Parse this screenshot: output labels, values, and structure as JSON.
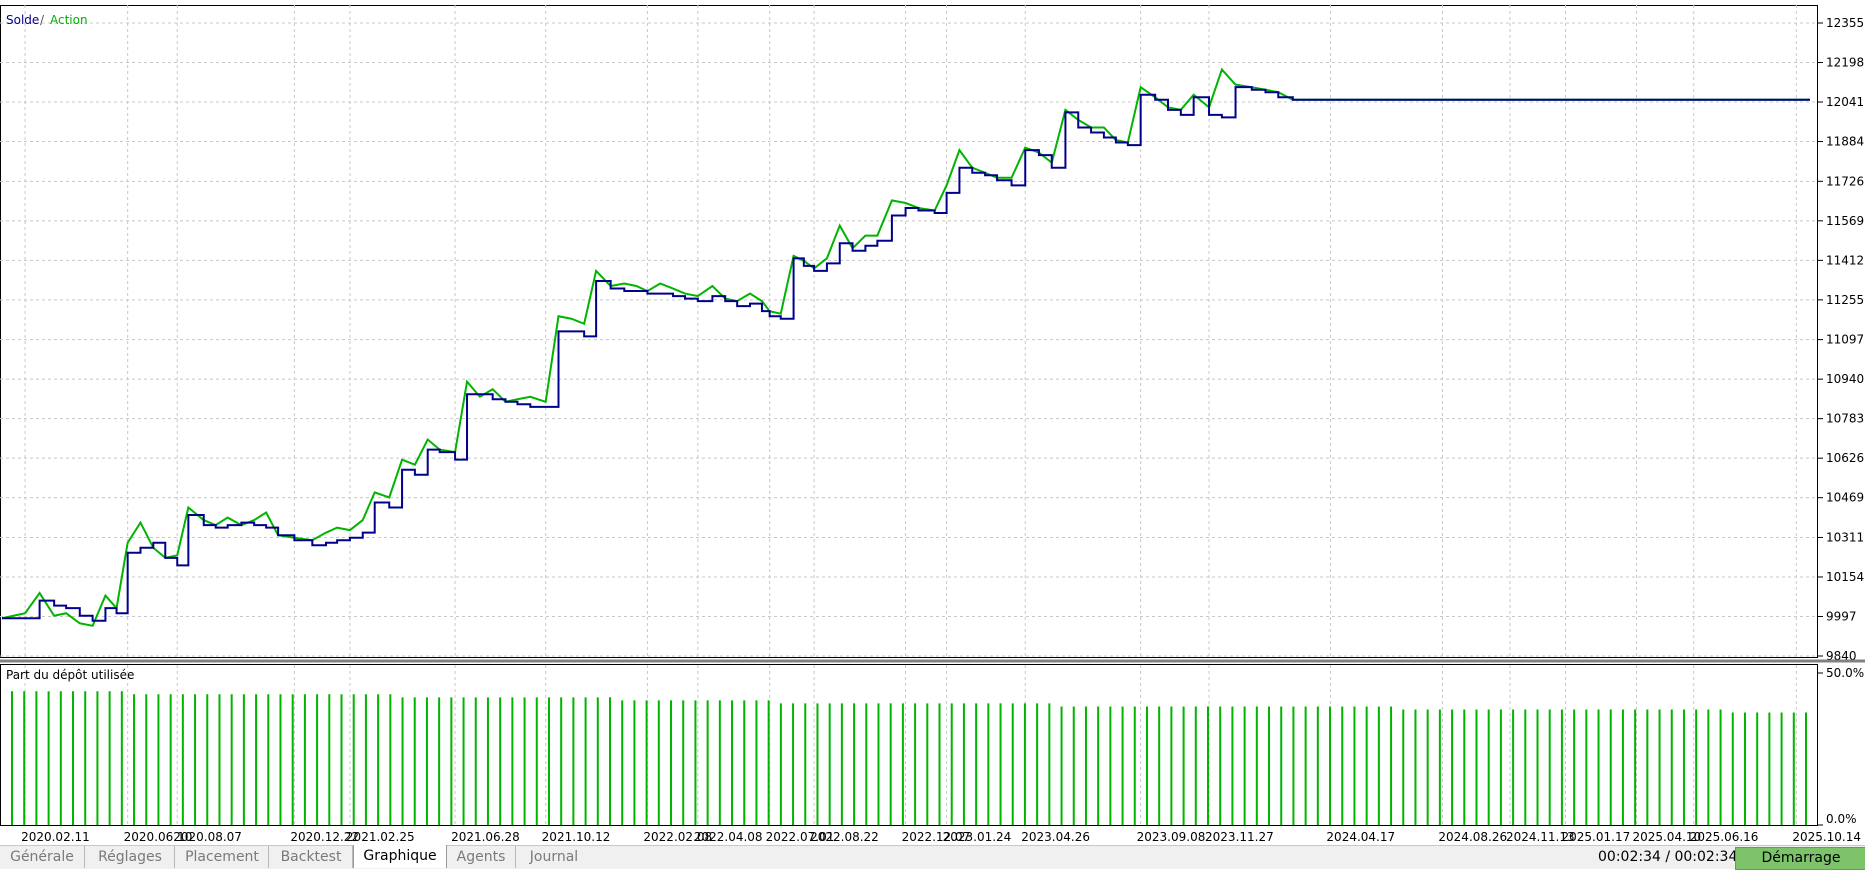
{
  "chart_data": [
    {
      "type": "line",
      "legend": [
        "Solde",
        "/",
        "Action"
      ],
      "colors": {
        "balance": "#00008b",
        "equity": "#00b400",
        "grid": "#c8c8c8"
      },
      "ylim": [
        9840,
        12355
      ],
      "y_ticks": [
        "12355",
        "12198",
        "12041",
        "11884",
        "11726",
        "11569",
        "11412",
        "11255",
        "11097",
        "10940",
        "10783",
        "10626",
        "10469",
        "10311",
        "10154",
        "9997",
        "9840"
      ],
      "x": [
        "2020.01.15",
        "2020.02.11",
        "2020.02.28",
        "2020.03.16",
        "2020.03.30",
        "2020.04.15",
        "2020.04.30",
        "2020.05.15",
        "2020.05.28",
        "2020.06.10",
        "2020.06.25",
        "2020.07.10",
        "2020.07.24",
        "2020.08.07",
        "2020.08.20",
        "2020.09.07",
        "2020.09.21",
        "2020.10.05",
        "2020.10.21",
        "2020.11.05",
        "2020.11.19",
        "2020.12.03",
        "2020.12.22",
        "2021.01.12",
        "2021.01.28",
        "2021.02.10",
        "2021.02.25",
        "2021.03.12",
        "2021.03.26",
        "2021.04.12",
        "2021.04.27",
        "2021.05.12",
        "2021.05.27",
        "2021.06.10",
        "2021.06.28",
        "2021.07.12",
        "2021.07.27",
        "2021.08.11",
        "2021.08.26",
        "2021.09.09",
        "2021.09.24",
        "2021.10.12",
        "2021.10.27",
        "2021.11.11",
        "2021.11.26",
        "2021.12.10",
        "2021.12.27",
        "2022.01.12",
        "2022.01.26",
        "2022.02.08",
        "2022.02.23",
        "2022.03.10",
        "2022.03.24",
        "2022.04.08",
        "2022.04.25",
        "2022.05.10",
        "2022.05.24",
        "2022.06.08",
        "2022.06.22",
        "2022.07.01",
        "2022.07.14",
        "2022.07.29",
        "2022.08.10",
        "2022.08.22",
        "2022.09.06",
        "2022.09.21",
        "2022.10.06",
        "2022.10.21",
        "2022.11.04",
        "2022.11.21",
        "2022.12.07",
        "2022.12.22",
        "2023.01.10",
        "2023.01.24",
        "2023.02.08",
        "2023.02.23",
        "2023.03.10",
        "2023.03.24",
        "2023.04.10",
        "2023.04.26",
        "2023.05.12",
        "2023.05.27",
        "2023.06.12",
        "2023.06.27",
        "2023.07.12",
        "2023.07.27",
        "2023.08.10",
        "2023.08.24",
        "2023.09.08",
        "2023.09.25",
        "2023.10.10",
        "2023.10.25",
        "2023.11.09",
        "2023.11.27",
        "2023.12.12",
        "2023.12.28",
        "2024.01.16",
        "2024.02.01",
        "2024.02.16",
        "2024.03.04",
        "2024.03.19",
        "2024.04.03",
        "2024.04.17",
        "2024.05.02",
        "2024.05.17",
        "2024.06.03",
        "2024.06.18",
        "2024.07.03",
        "2024.07.18",
        "2024.08.02",
        "2024.08.26",
        "2024.09.09",
        "2024.09.24",
        "2024.10.09",
        "2024.10.24",
        "2024.11.13",
        "2024.11.27",
        "2024.12.11",
        "2024.12.26",
        "2025.01.17",
        "2025.01.31",
        "2025.02.14",
        "2025.02.28",
        "2025.03.14",
        "2025.03.27",
        "2025.04.10",
        "2025.04.24",
        "2025.05.08",
        "2025.05.22",
        "2025.06.05",
        "2025.06.16",
        "2025.07.02",
        "2025.07.17",
        "2025.08.01",
        "2025.08.15",
        "2025.09.01",
        "2025.09.15",
        "2025.09.30",
        "2025.10.14",
        "2025.10.30"
      ],
      "x_ticks": [
        "2020.02.11",
        "2020.06.10",
        "2020.08.07",
        "2020.12.22",
        "2021.02.25",
        "2021.06.28",
        "2021.10.12",
        "2022.02.08",
        "2022.04.08",
        "2022.07.01",
        "2022.08.22",
        "2022.12.07",
        "2023.01.24",
        "2023.04.26",
        "2023.09.08",
        "2023.11.27",
        "2024.04.17",
        "2024.08.26",
        "2024.11.13",
        "2025.01.17",
        "2025.04.10",
        "2025.06.16",
        "2025.10.14"
      ],
      "series": [
        {
          "name": "Solde",
          "values": [
            9990,
            9990,
            10060,
            10040,
            10030,
            10000,
            9980,
            10030,
            10010,
            10250,
            10270,
            10290,
            10230,
            10200,
            10400,
            10360,
            10350,
            10360,
            10370,
            10360,
            10350,
            10320,
            10300,
            10280,
            10290,
            10300,
            10310,
            10330,
            10450,
            10430,
            10580,
            10560,
            10660,
            10650,
            10620,
            10880,
            10880,
            10860,
            10850,
            10840,
            10830,
            10830,
            11130,
            11130,
            11110,
            11330,
            11300,
            11290,
            11290,
            11280,
            11280,
            11270,
            11260,
            11250,
            11270,
            11250,
            11230,
            11240,
            11210,
            11190,
            11180,
            11420,
            11390,
            11370,
            11400,
            11480,
            11450,
            11470,
            11490,
            11590,
            11620,
            11610,
            11600,
            11680,
            11780,
            11760,
            11750,
            11730,
            11710,
            11850,
            11830,
            11780,
            12000,
            11940,
            11920,
            11900,
            11880,
            11870,
            12070,
            12050,
            12010,
            11990,
            12060,
            11990,
            11980,
            12100,
            12090,
            12080,
            12060,
            12050,
            12050,
            12050,
            12050,
            12050,
            12050,
            12050,
            12050,
            12050,
            12050,
            12050,
            12050,
            12050,
            12050,
            12050,
            12050,
            12050,
            12050,
            12050,
            12050,
            12050,
            12050,
            12050,
            12050,
            12050,
            12050,
            12050,
            12050,
            12050,
            12050,
            12050,
            12050,
            12050,
            12050,
            12050,
            12050,
            12050,
            12050,
            12050,
            12050,
            12050
          ]
        },
        {
          "name": "Action",
          "values": [
            9990,
            10010,
            10090,
            10000,
            10010,
            9970,
            9960,
            10080,
            10030,
            10290,
            10370,
            10270,
            10230,
            10240,
            10430,
            10380,
            10360,
            10390,
            10360,
            10380,
            10410,
            10320,
            10310,
            10300,
            10330,
            10350,
            10340,
            10380,
            10490,
            10470,
            10620,
            10600,
            10700,
            10660,
            10650,
            10930,
            10870,
            10900,
            10850,
            10860,
            10870,
            10850,
            11190,
            11180,
            11160,
            11370,
            11310,
            11320,
            11310,
            11290,
            11320,
            11300,
            11280,
            11270,
            11310,
            11260,
            11250,
            11280,
            11250,
            11210,
            11200,
            11430,
            11410,
            11380,
            11420,
            11550,
            11460,
            11510,
            11510,
            11650,
            11640,
            11620,
            11610,
            11710,
            11850,
            11780,
            11760,
            11740,
            11740,
            11860,
            11840,
            11800,
            12010,
            11970,
            11940,
            11940,
            11890,
            11880,
            12100,
            12060,
            12020,
            12010,
            12070,
            12020,
            12170,
            12110,
            12100,
            12090,
            12080,
            12050,
            12050,
            12050,
            12050,
            12050,
            12050,
            12050,
            12050,
            12050,
            12050,
            12050,
            12050,
            12050,
            12050,
            12050,
            12050,
            12050,
            12050,
            12050,
            12050,
            12050,
            12050,
            12050,
            12050,
            12050,
            12050,
            12050,
            12050,
            12050,
            12050,
            12050,
            12050,
            12050,
            12050,
            12050,
            12050,
            12050,
            12050,
            12050,
            12050,
            12050
          ]
        }
      ],
      "grid": true
    },
    {
      "type": "bar",
      "title": "Part du dépôt utilisée",
      "color": "#00b400",
      "ylim": [
        0,
        50
      ],
      "y_ticks": [
        "50.0%",
        "0.0%"
      ],
      "value_format": "percent",
      "values": [
        44,
        44,
        44,
        44,
        44,
        44,
        44,
        44,
        44,
        44,
        43,
        43,
        43,
        43,
        43,
        43,
        43,
        43,
        43,
        43,
        43,
        43,
        43,
        43,
        43,
        43,
        43,
        43,
        43,
        43,
        43,
        43,
        42,
        42,
        42,
        42,
        42,
        42,
        42,
        42,
        42,
        42,
        42,
        42,
        42,
        42,
        42,
        42,
        42,
        42,
        41,
        41,
        41,
        41,
        41,
        41,
        41,
        41,
        41,
        41,
        41,
        41,
        41,
        40,
        40,
        40,
        40,
        40,
        40,
        40,
        40,
        40,
        40,
        40,
        40,
        40,
        40,
        40,
        40,
        40,
        40,
        40,
        40,
        40,
        40,
        40,
        39,
        39,
        39,
        39,
        39,
        39,
        39,
        39,
        39,
        39,
        39,
        39,
        39,
        39,
        39,
        39,
        39,
        39,
        39,
        39,
        39,
        39,
        39,
        39,
        39,
        39,
        39,
        39,
        38,
        38,
        38,
        38,
        38,
        38,
        38,
        38,
        38,
        38,
        38,
        38,
        38,
        38,
        38,
        38,
        38,
        38,
        38,
        38,
        38,
        38,
        38,
        38,
        38,
        38,
        38,
        37,
        37,
        37,
        37,
        37,
        37,
        37
      ]
    }
  ],
  "tabs": [
    {
      "label": "Générale"
    },
    {
      "label": "Réglages"
    },
    {
      "label": "Placement"
    },
    {
      "label": "Backtest"
    },
    {
      "label": "Graphique"
    },
    {
      "label": "Agents"
    },
    {
      "label": "Journal"
    }
  ],
  "status": {
    "timer": "00:02:34 / 00:02:34",
    "start_label": "Démarrage"
  }
}
